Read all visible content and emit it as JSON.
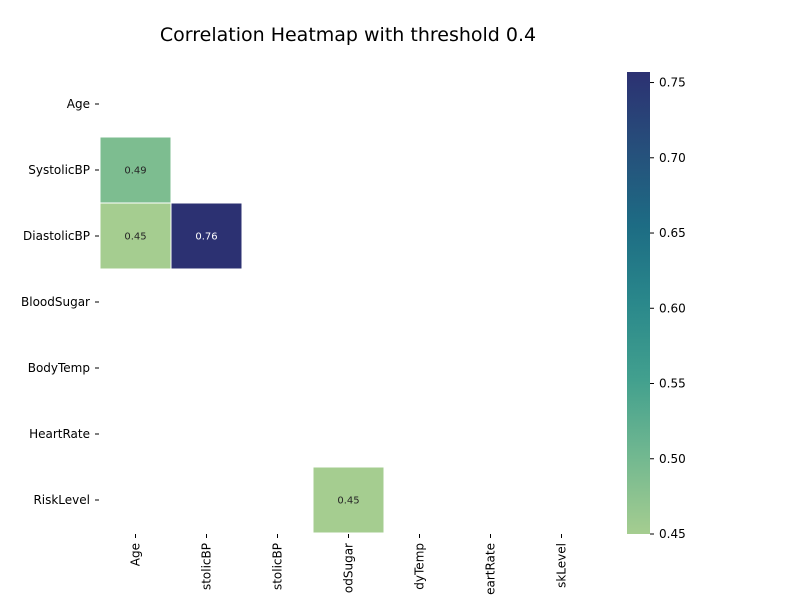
{
  "chart_data": {
    "type": "heatmap",
    "title": "Correlation Heatmap with threshold 0.4",
    "x_labels": [
      "Age",
      "SystolicBP",
      "DiastolicBP",
      "BloodSugar",
      "BodyTemp",
      "HeartRate",
      "RiskLevel"
    ],
    "x_labels_visible": [
      "Age",
      "stolicBP",
      "stolicBP",
      "odSugar",
      "dyTemp",
      "eartRate",
      "skLevel"
    ],
    "y_labels": [
      "Age",
      "SystolicBP",
      "DiastolicBP",
      "BloodSugar",
      "BodyTemp",
      "HeartRate",
      "RiskLevel"
    ],
    "cells": [
      {
        "row": 1,
        "col": 0,
        "value": 0.49,
        "label": "0.49"
      },
      {
        "row": 2,
        "col": 0,
        "value": 0.45,
        "label": "0.45"
      },
      {
        "row": 2,
        "col": 1,
        "value": 0.76,
        "label": "0.76"
      },
      {
        "row": 6,
        "col": 3,
        "value": 0.45,
        "label": "0.45"
      }
    ],
    "colormap": "crest",
    "colorbar": {
      "range": [
        0.45,
        0.757
      ],
      "ticks": [
        0.45,
        0.5,
        0.55,
        0.6,
        0.65,
        0.7,
        0.75
      ],
      "tick_labels": [
        "0.45",
        "0.50",
        "0.55",
        "0.60",
        "0.65",
        "0.70",
        "0.75"
      ],
      "placement": "right"
    },
    "grid": false
  },
  "colors": {
    "crest_stops": [
      "#a5cd90",
      "#72b890",
      "#42a08e",
      "#2a888b",
      "#1d6c84",
      "#264f7b",
      "#2c3172"
    ]
  }
}
